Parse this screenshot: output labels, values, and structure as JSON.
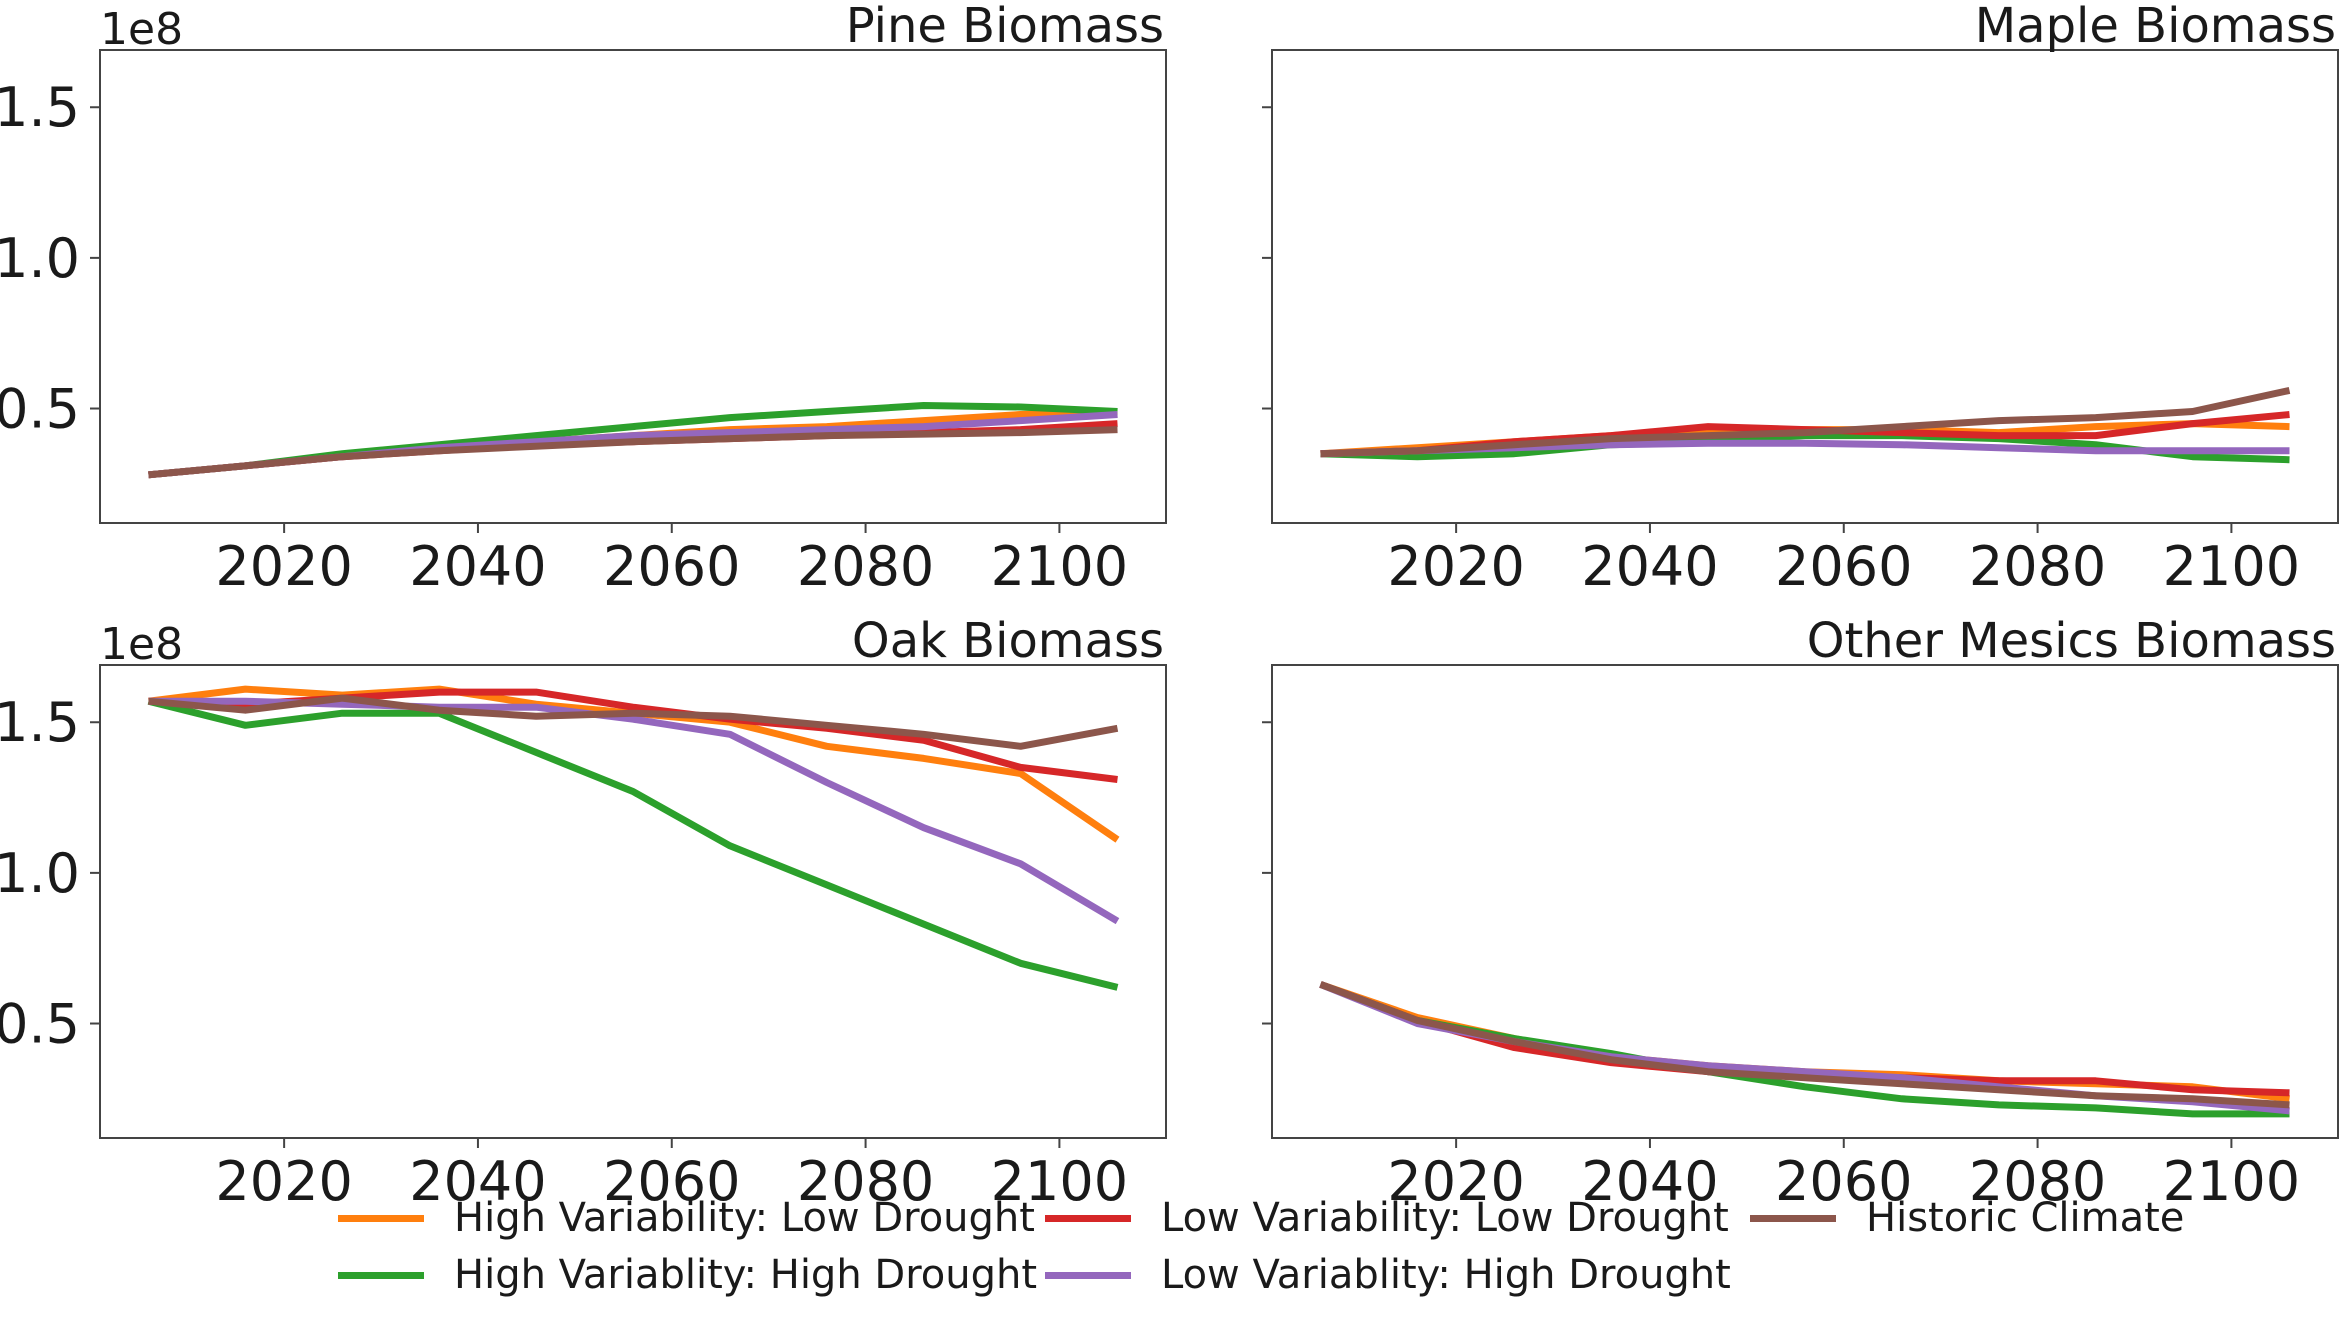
{
  "series_meta": [
    {
      "name": "High Variability: Low Drought",
      "color": "#ff7f0e"
    },
    {
      "name": "High Variablity: High Drought",
      "color": "#2ca02c"
    },
    {
      "name": "Low Variability: Low Drought",
      "color": "#d62728"
    },
    {
      "name": "Low Variablity: High Drought",
      "color": "#9467bd"
    },
    {
      "name": "Historic Climate",
      "color": "#8c564b"
    }
  ],
  "chart_data": [
    {
      "type": "line",
      "title": "Pine Biomass",
      "offset_label": "1e8",
      "x": [
        2006,
        2016,
        2026,
        2036,
        2046,
        2056,
        2066,
        2076,
        2086,
        2096,
        2106
      ],
      "xticks": [
        "2020",
        "2040",
        "2060",
        "2080",
        "2100"
      ],
      "yticks": [
        "0.5",
        "1.0",
        "1.5"
      ],
      "ylim": [
        0.12,
        1.69
      ],
      "xlim": [
        2001,
        2111
      ],
      "series": [
        {
          "name": "High Variability: Low Drought",
          "values": [
            0.28,
            0.31,
            0.34,
            0.37,
            0.39,
            0.41,
            0.43,
            0.44,
            0.46,
            0.48,
            0.49
          ]
        },
        {
          "name": "High Variablity: High Drought",
          "values": [
            0.28,
            0.31,
            0.35,
            0.38,
            0.41,
            0.44,
            0.47,
            0.49,
            0.51,
            0.505,
            0.49
          ]
        },
        {
          "name": "Low Variability: Low Drought",
          "values": [
            0.28,
            0.31,
            0.34,
            0.36,
            0.38,
            0.39,
            0.4,
            0.41,
            0.42,
            0.43,
            0.45
          ]
        },
        {
          "name": "Low Variablity: High Drought",
          "values": [
            0.28,
            0.31,
            0.34,
            0.37,
            0.39,
            0.41,
            0.42,
            0.43,
            0.44,
            0.46,
            0.48
          ]
        },
        {
          "name": "Historic Climate",
          "values": [
            0.28,
            0.31,
            0.34,
            0.36,
            0.375,
            0.39,
            0.4,
            0.41,
            0.415,
            0.42,
            0.43
          ]
        }
      ]
    },
    {
      "type": "line",
      "title": "Maple Biomass",
      "offset_label": "",
      "x": [
        2006,
        2016,
        2026,
        2036,
        2046,
        2056,
        2066,
        2076,
        2086,
        2096,
        2106
      ],
      "xticks": [
        "2020",
        "2040",
        "2060",
        "2080",
        "2100"
      ],
      "yticks": [],
      "ylim": [
        0.12,
        1.69
      ],
      "xlim": [
        2001,
        2111
      ],
      "series": [
        {
          "name": "High Variability: Low Drought",
          "values": [
            0.35,
            0.37,
            0.39,
            0.41,
            0.43,
            0.43,
            0.43,
            0.42,
            0.44,
            0.45,
            0.44
          ]
        },
        {
          "name": "High Variablity: High Drought",
          "values": [
            0.35,
            0.34,
            0.35,
            0.38,
            0.39,
            0.41,
            0.41,
            0.4,
            0.38,
            0.34,
            0.33
          ]
        },
        {
          "name": "Low Variability: Low Drought",
          "values": [
            0.35,
            0.36,
            0.39,
            0.41,
            0.44,
            0.43,
            0.42,
            0.41,
            0.41,
            0.45,
            0.48
          ]
        },
        {
          "name": "Low Variablity: High Drought",
          "values": [
            0.35,
            0.36,
            0.37,
            0.38,
            0.385,
            0.385,
            0.38,
            0.37,
            0.36,
            0.36,
            0.36
          ]
        },
        {
          "name": "Historic Climate",
          "values": [
            0.35,
            0.36,
            0.38,
            0.4,
            0.41,
            0.42,
            0.44,
            0.46,
            0.47,
            0.49,
            0.56
          ]
        }
      ]
    },
    {
      "type": "line",
      "title": "Oak Biomass",
      "offset_label": "1e8",
      "x": [
        2006,
        2016,
        2026,
        2036,
        2046,
        2056,
        2066,
        2076,
        2086,
        2096,
        2106
      ],
      "xticks": [
        "2020",
        "2040",
        "2060",
        "2080",
        "2100"
      ],
      "yticks": [
        "0.5",
        "1.0",
        "1.5"
      ],
      "ylim": [
        0.12,
        1.69
      ],
      "xlim": [
        2001,
        2111
      ],
      "series": [
        {
          "name": "High Variability: Low Drought",
          "values": [
            1.57,
            1.61,
            1.59,
            1.61,
            1.56,
            1.53,
            1.5,
            1.42,
            1.38,
            1.33,
            1.11
          ]
        },
        {
          "name": "High Variablity: High Drought",
          "values": [
            1.57,
            1.49,
            1.53,
            1.53,
            1.4,
            1.27,
            1.09,
            0.96,
            0.83,
            0.7,
            0.62
          ]
        },
        {
          "name": "Low Variability: Low Drought",
          "values": [
            1.57,
            1.56,
            1.58,
            1.6,
            1.6,
            1.55,
            1.51,
            1.48,
            1.44,
            1.35,
            1.31
          ]
        },
        {
          "name": "Low Variablity: High Drought",
          "values": [
            1.57,
            1.57,
            1.56,
            1.55,
            1.55,
            1.51,
            1.46,
            1.3,
            1.15,
            1.03,
            0.84
          ]
        },
        {
          "name": "Historic Climate",
          "values": [
            1.57,
            1.54,
            1.58,
            1.54,
            1.52,
            1.53,
            1.52,
            1.49,
            1.46,
            1.42,
            1.48
          ]
        }
      ]
    },
    {
      "type": "line",
      "title": "Other Mesics Biomass",
      "offset_label": "",
      "x": [
        2006,
        2016,
        2026,
        2036,
        2046,
        2056,
        2066,
        2076,
        2086,
        2096,
        2106
      ],
      "xticks": [
        "2020",
        "2040",
        "2060",
        "2080",
        "2100"
      ],
      "yticks": [],
      "ylim": [
        0.12,
        1.69
      ],
      "xlim": [
        2001,
        2111
      ],
      "series": [
        {
          "name": "High Variability: Low Drought",
          "values": [
            0.63,
            0.52,
            0.45,
            0.39,
            0.36,
            0.34,
            0.33,
            0.31,
            0.3,
            0.29,
            0.25
          ]
        },
        {
          "name": "High Variablity: High Drought",
          "values": [
            0.63,
            0.51,
            0.45,
            0.4,
            0.34,
            0.29,
            0.25,
            0.23,
            0.22,
            0.2,
            0.2
          ]
        },
        {
          "name": "Low Variability: Low Drought",
          "values": [
            0.63,
            0.51,
            0.42,
            0.37,
            0.34,
            0.33,
            0.32,
            0.31,
            0.31,
            0.28,
            0.27
          ]
        },
        {
          "name": "Low Variablity: High Drought",
          "values": [
            0.63,
            0.5,
            0.44,
            0.39,
            0.36,
            0.34,
            0.32,
            0.29,
            0.26,
            0.24,
            0.21
          ]
        },
        {
          "name": "Historic Climate",
          "values": [
            0.63,
            0.51,
            0.44,
            0.38,
            0.34,
            0.32,
            0.3,
            0.28,
            0.26,
            0.25,
            0.23
          ]
        }
      ]
    }
  ]
}
